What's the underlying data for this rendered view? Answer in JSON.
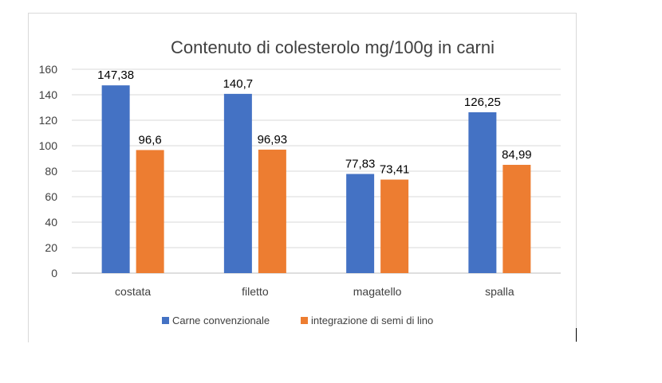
{
  "chart_data": {
    "type": "bar",
    "title": "Contenuto di colesterolo mg/100g in carni",
    "categories": [
      "costata",
      "filetto",
      "magatello",
      "spalla"
    ],
    "series": [
      {
        "name": "Carne convenzionale",
        "color": "#4472C4",
        "values": [
          147.38,
          140.7,
          77.83,
          126.25
        ],
        "labels": [
          "147,38",
          "140,7",
          "77,83",
          "126,25"
        ]
      },
      {
        "name": "integrazione di semi di lino",
        "color": "#ED7D31",
        "values": [
          96.6,
          96.93,
          73.41,
          84.99
        ],
        "labels": [
          "96,6",
          "96,93",
          "73,41",
          "84,99"
        ]
      }
    ],
    "ylim": [
      0,
      160
    ],
    "yticks": [
      "0",
      "20",
      "40",
      "60",
      "80",
      "100",
      "120",
      "140",
      "160"
    ],
    "grid": true,
    "legend": "bottom"
  }
}
